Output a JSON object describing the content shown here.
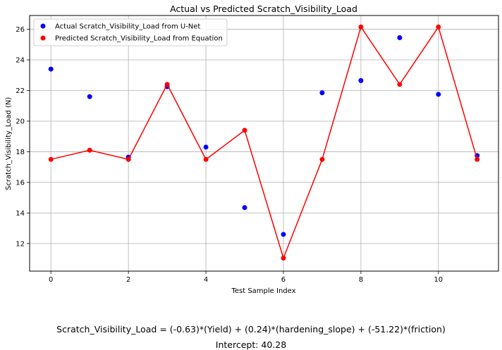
{
  "chart_data": {
    "type": "scatter",
    "title": "Actual vs Predicted Scratch_Visibility_Load",
    "xlabel": "Test Sample Index",
    "ylabel": "Scratch_Visibility_Load (N)",
    "xlim": [
      -0.55,
      11.55
    ],
    "ylim": [
      10.2,
      26.9
    ],
    "xticks": [
      0,
      2,
      4,
      6,
      8,
      10
    ],
    "yticks": [
      12,
      14,
      16,
      18,
      20,
      22,
      24,
      26
    ],
    "grid": true,
    "legend_position": "top-left",
    "x": [
      0,
      1,
      2,
      3,
      4,
      5,
      6,
      7,
      8,
      9,
      10,
      11
    ],
    "series": [
      {
        "name": "Actual Scratch_Visibility_Load from U-Net",
        "color": "#0000ff",
        "style": "markers",
        "values": [
          23.4,
          21.6,
          17.65,
          22.25,
          18.3,
          14.35,
          12.6,
          21.85,
          22.65,
          25.45,
          21.75,
          17.75
        ]
      },
      {
        "name": "Predicted Scratch_Visibility_Load from Equation",
        "color": "#ff0000",
        "style": "line+markers",
        "values": [
          17.5,
          18.1,
          17.5,
          22.4,
          17.5,
          19.4,
          11.05,
          17.5,
          26.15,
          22.4,
          26.15,
          17.5
        ]
      }
    ]
  },
  "equation": "Scratch_Visibility_Load = (-0.63)*(Yield) + (0.24)*(hardening_slope) + (-51.22)*(friction)",
  "intercept": "Intercept: 40.28"
}
